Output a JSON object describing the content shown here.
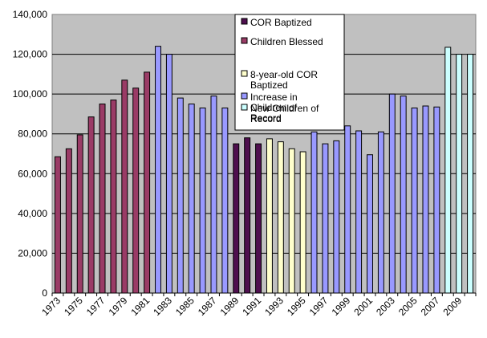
{
  "chart_data": {
    "type": "bar",
    "title": "",
    "xlabel": "",
    "ylabel": "",
    "ylim": [
      0,
      140000
    ],
    "yticks": [
      "0",
      "20,000",
      "40,000",
      "60,000",
      "80,000",
      "100,000",
      "120,000",
      "140,000"
    ],
    "xtick_labels": [
      "1973",
      "1975",
      "1977",
      "1979",
      "1981",
      "1983",
      "1985",
      "1987",
      "1989",
      "1991",
      "1993",
      "1995",
      "1997",
      "1999",
      "2001",
      "2003",
      "2005",
      "2007",
      "2009"
    ],
    "grid": true,
    "legend_position": "top-center",
    "series": [
      {
        "name": "COR Baptized",
        "color": "#4f0f4f",
        "points": [
          {
            "year": 1989,
            "value": 75000
          },
          {
            "year": 1990,
            "value": 78000
          },
          {
            "year": 1991,
            "value": 75000
          }
        ]
      },
      {
        "name": "Children Blessed",
        "color": "#9a3b66",
        "points": [
          {
            "year": 1973,
            "value": 68500
          },
          {
            "year": 1974,
            "value": 72500
          },
          {
            "year": 1975,
            "value": 79500
          },
          {
            "year": 1976,
            "value": 88500
          },
          {
            "year": 1977,
            "value": 95000
          },
          {
            "year": 1978,
            "value": 97000
          },
          {
            "year": 1979,
            "value": 107000
          },
          {
            "year": 1980,
            "value": 103000
          },
          {
            "year": 1981,
            "value": 111000
          }
        ]
      },
      {
        "name": "8-year-old COR Baptized",
        "color": "#ffffcc",
        "points": [
          {
            "year": 1992,
            "value": 77500
          },
          {
            "year": 1993,
            "value": 76000
          },
          {
            "year": 1994,
            "value": 72500
          },
          {
            "year": 1995,
            "value": 71000
          }
        ]
      },
      {
        "name": "Increase in Children of Record",
        "color": "#9999ff",
        "points": [
          {
            "year": 1982,
            "value": 124000
          },
          {
            "year": 1983,
            "value": 120000
          },
          {
            "year": 1984,
            "value": 98000
          },
          {
            "year": 1985,
            "value": 95000
          },
          {
            "year": 1986,
            "value": 93000
          },
          {
            "year": 1987,
            "value": 99000
          },
          {
            "year": 1988,
            "value": 93000
          },
          {
            "year": 1996,
            "value": 81000
          },
          {
            "year": 1997,
            "value": 75000
          },
          {
            "year": 1998,
            "value": 76500
          },
          {
            "year": 1999,
            "value": 84000
          },
          {
            "year": 2000,
            "value": 81500
          },
          {
            "year": 2001,
            "value": 69500
          },
          {
            "year": 2002,
            "value": 81000
          },
          {
            "year": 2003,
            "value": 100000
          },
          {
            "year": 2004,
            "value": 99000
          },
          {
            "year": 2005,
            "value": 93000
          },
          {
            "year": 2006,
            "value": 94000
          },
          {
            "year": 2007,
            "value": 93500
          }
        ]
      },
      {
        "name": "New Children of Record",
        "color": "#ccffff",
        "points": [
          {
            "year": 2008,
            "value": 123500
          },
          {
            "year": 2009,
            "value": 120000
          },
          {
            "year": 2010,
            "value": 120000
          }
        ]
      }
    ]
  }
}
